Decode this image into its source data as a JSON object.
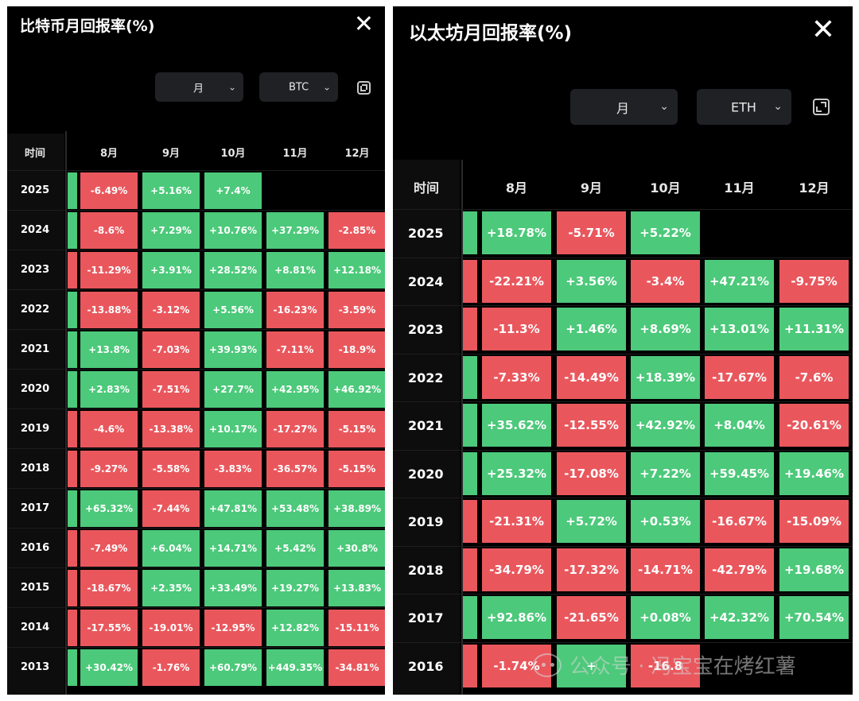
{
  "btc": {
    "title": "比特币月回报率(%)",
    "close_symbol": "✕",
    "period_select": "月",
    "coin_select": "BTC",
    "year_header": "时间",
    "months": [
      "8月",
      "9月",
      "10月",
      "11月",
      "12月"
    ],
    "rows": [
      {
        "year": "2025",
        "stub": "pos",
        "cells": [
          "-6.49%",
          "+5.16%",
          "+7.4%",
          "",
          ""
        ]
      },
      {
        "year": "2024",
        "stub": "pos",
        "cells": [
          "-8.6%",
          "+7.29%",
          "+10.76%",
          "+37.29%",
          "-2.85%"
        ]
      },
      {
        "year": "2023",
        "stub": "neg",
        "cells": [
          "-11.29%",
          "+3.91%",
          "+28.52%",
          "+8.81%",
          "+12.18%"
        ]
      },
      {
        "year": "2022",
        "stub": "pos",
        "cells": [
          "-13.88%",
          "-3.12%",
          "+5.56%",
          "-16.23%",
          "-3.59%"
        ]
      },
      {
        "year": "2021",
        "stub": "pos",
        "cells": [
          "+13.8%",
          "-7.03%",
          "+39.93%",
          "-7.11%",
          "-18.9%"
        ]
      },
      {
        "year": "2020",
        "stub": "pos",
        "cells": [
          "+2.83%",
          "-7.51%",
          "+27.7%",
          "+42.95%",
          "+46.92%"
        ]
      },
      {
        "year": "2019",
        "stub": "neg",
        "cells": [
          "-4.6%",
          "-13.38%",
          "+10.17%",
          "-17.27%",
          "-5.15%"
        ]
      },
      {
        "year": "2018",
        "stub": "neg",
        "cells": [
          "-9.27%",
          "-5.58%",
          "-3.83%",
          "-36.57%",
          "-5.15%"
        ]
      },
      {
        "year": "2017",
        "stub": "pos",
        "cells": [
          "+65.32%",
          "-7.44%",
          "+47.81%",
          "+53.48%",
          "+38.89%"
        ]
      },
      {
        "year": "2016",
        "stub": "neg",
        "cells": [
          "-7.49%",
          "+6.04%",
          "+14.71%",
          "+5.42%",
          "+30.8%"
        ]
      },
      {
        "year": "2015",
        "stub": "neg",
        "cells": [
          "-18.67%",
          "+2.35%",
          "+33.49%",
          "+19.27%",
          "+13.83%"
        ]
      },
      {
        "year": "2014",
        "stub": "neg",
        "cells": [
          "-17.55%",
          "-19.01%",
          "-12.95%",
          "+12.82%",
          "-15.11%"
        ]
      },
      {
        "year": "2013",
        "stub": "pos",
        "cells": [
          "+30.42%",
          "-1.76%",
          "+60.79%",
          "+449.35%",
          "-34.81%"
        ]
      }
    ]
  },
  "eth": {
    "title": "以太坊月回报率(%)",
    "close_symbol": "✕",
    "period_select": "月",
    "coin_select": "ETH",
    "year_header": "时间",
    "months": [
      "8月",
      "9月",
      "10月",
      "11月",
      "12月"
    ],
    "rows": [
      {
        "year": "2025",
        "stub": "pos",
        "cells": [
          "+18.78%",
          "-5.71%",
          "+5.22%",
          "",
          ""
        ]
      },
      {
        "year": "2024",
        "stub": "neg",
        "cells": [
          "-22.21%",
          "+3.56%",
          "-3.4%",
          "+47.21%",
          "-9.75%"
        ]
      },
      {
        "year": "2023",
        "stub": "neg",
        "cells": [
          "-11.3%",
          "+1.46%",
          "+8.69%",
          "+13.01%",
          "+11.31%"
        ]
      },
      {
        "year": "2022",
        "stub": "pos",
        "cells": [
          "-7.33%",
          "-14.49%",
          "+18.39%",
          "-17.67%",
          "-7.6%"
        ]
      },
      {
        "year": "2021",
        "stub": "pos",
        "cells": [
          "+35.62%",
          "-12.55%",
          "+42.92%",
          "+8.04%",
          "-20.61%"
        ]
      },
      {
        "year": "2020",
        "stub": "pos",
        "cells": [
          "+25.32%",
          "-17.08%",
          "+7.22%",
          "+59.45%",
          "+19.46%"
        ]
      },
      {
        "year": "2019",
        "stub": "neg",
        "cells": [
          "-21.31%",
          "+5.72%",
          "+0.53%",
          "-16.67%",
          "-15.09%"
        ]
      },
      {
        "year": "2018",
        "stub": "neg",
        "cells": [
          "-34.79%",
          "-17.32%",
          "-14.71%",
          "-42.79%",
          "+19.68%"
        ]
      },
      {
        "year": "2017",
        "stub": "pos",
        "cells": [
          "+92.86%",
          "-21.65%",
          "+0.08%",
          "+42.32%",
          "+70.54%"
        ]
      },
      {
        "year": "2016",
        "stub": "neg",
        "cells": [
          "-1.74%",
          "+",
          "-16.8",
          "",
          ""
        ]
      }
    ]
  },
  "watermark": {
    "text": "公众号 · 冯宝宝在烤红薯"
  },
  "colors": {
    "positive": "#4cc97a",
    "negative": "#e9575d",
    "background": "#000000"
  }
}
